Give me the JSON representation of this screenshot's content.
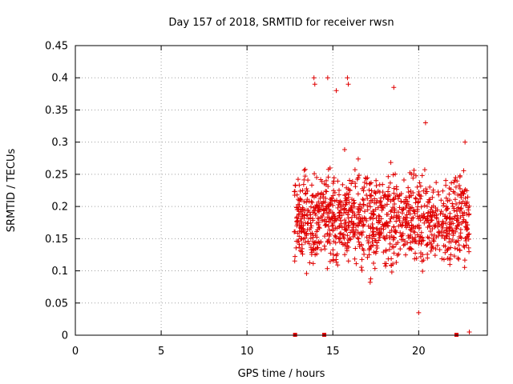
{
  "chart_data": {
    "type": "scatter",
    "title": "Day 157 of 2018, SRMTID for receiver rwsn",
    "xlabel": "GPS time / hours",
    "ylabel": "SRMTID / TECUs",
    "xlim": [
      0,
      24
    ],
    "ylim": [
      0,
      0.45
    ],
    "x_ticks": [
      "0",
      "5",
      "10",
      "15",
      "20"
    ],
    "y_ticks": [
      "0",
      "0.05",
      "0.1",
      "0.15",
      "0.2",
      "0.25",
      "0.3",
      "0.35",
      "0.4",
      "0.45"
    ],
    "grid": true,
    "series": [
      {
        "name": "SRMTID",
        "marker": "plus",
        "color": "#e00000",
        "x_range": [
          12.75,
          22.95
        ],
        "typical_range": [
          0.06,
          0.3
        ],
        "notable_points": [
          {
            "x": 13.9,
            "y": 0.4
          },
          {
            "x": 13.95,
            "y": 0.39
          },
          {
            "x": 14.7,
            "y": 0.4
          },
          {
            "x": 15.85,
            "y": 0.4
          },
          {
            "x": 15.9,
            "y": 0.39
          },
          {
            "x": 18.55,
            "y": 0.385
          },
          {
            "x": 15.2,
            "y": 0.38
          },
          {
            "x": 20.4,
            "y": 0.33
          },
          {
            "x": 20.0,
            "y": 0.035
          },
          {
            "x": 22.95,
            "y": 0.005
          },
          {
            "x": 22.7,
            "y": 0.3
          }
        ]
      }
    ],
    "baseline_markers": [
      {
        "x": 12.8,
        "y": 0
      },
      {
        "x": 14.5,
        "y": 0
      },
      {
        "x": 22.2,
        "y": 0
      }
    ]
  }
}
